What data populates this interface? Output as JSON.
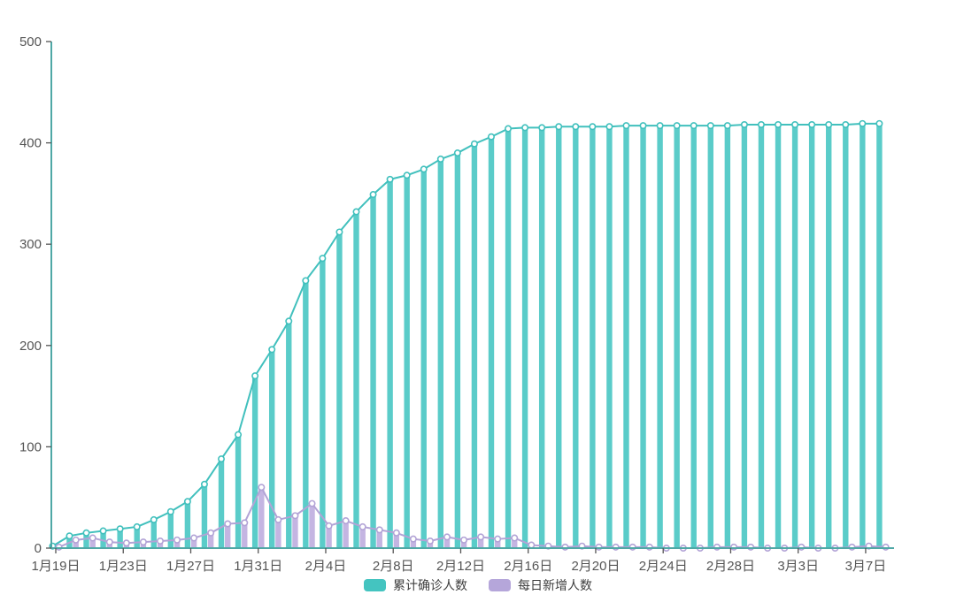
{
  "chart_data": {
    "type": "bar",
    "title": "",
    "xlabel": "",
    "ylabel": "",
    "ylim": [
      0,
      500
    ],
    "y_ticks": [
      0,
      100,
      200,
      300,
      400,
      500
    ],
    "grid": false,
    "legend_position": "bottom-center",
    "x_label_interval": 4,
    "x_tick_labels_shown": [
      "1月19日",
      "1月23日",
      "1月27日",
      "1月31日",
      "2月4日",
      "2月8日",
      "2月12日",
      "2月16日",
      "2月20日",
      "2月24日",
      "2月28日",
      "3月3日",
      "3月7日"
    ],
    "categories": [
      "1月19日",
      "1月20日",
      "1月21日",
      "1月22日",
      "1月23日",
      "1月24日",
      "1月25日",
      "1月26日",
      "1月27日",
      "1月28日",
      "1月29日",
      "1月30日",
      "1月31日",
      "2月1日",
      "2月2日",
      "2月3日",
      "2月4日",
      "2月5日",
      "2月6日",
      "2月7日",
      "2月8日",
      "2月9日",
      "2月10日",
      "2月11日",
      "2月12日",
      "2月13日",
      "2月14日",
      "2月15日",
      "2月16日",
      "2月17日",
      "2月18日",
      "2月19日",
      "2月20日",
      "2月21日",
      "2月22日",
      "2月23日",
      "2月24日",
      "2月25日",
      "2月26日",
      "2月27日",
      "2月28日",
      "2月29日",
      "3月1日",
      "3月2日",
      "3月3日",
      "3月4日",
      "3月5日",
      "3月6日",
      "3月7日",
      "3月8日"
    ],
    "series": [
      {
        "name": "累计确诊人数",
        "type": "bar+line+marker",
        "color": "#41c0bd",
        "bar_color": "#5accc9",
        "values": [
          2,
          12,
          15,
          17,
          19,
          21,
          28,
          36,
          46,
          63,
          88,
          112,
          170,
          196,
          224,
          264,
          286,
          312,
          332,
          349,
          364,
          368,
          374,
          384,
          390,
          399,
          406,
          414,
          415,
          415,
          416,
          416,
          416,
          416,
          417,
          417,
          417,
          417,
          417,
          417,
          417,
          418,
          418,
          418,
          418,
          418,
          418,
          418,
          419,
          419
        ]
      },
      {
        "name": "每日新增人数",
        "type": "bar+line+marker",
        "color": "#b2a3d6",
        "bar_color": "#c4b5e2",
        "values": [
          1,
          8,
          10,
          6,
          5,
          6,
          7,
          8,
          10,
          15,
          24,
          25,
          60,
          28,
          32,
          44,
          22,
          27,
          21,
          18,
          15,
          9,
          7,
          11,
          8,
          11,
          9,
          10,
          3,
          2,
          1,
          2,
          1,
          1,
          1,
          1,
          0,
          0,
          0,
          1,
          1,
          1,
          0,
          0,
          1,
          0,
          0,
          1,
          2,
          1
        ]
      }
    ],
    "axis_colors": {
      "axis_line": "#4fa8a6",
      "tick": "#555555",
      "label_text": "#555555"
    }
  },
  "legend": {
    "items": [
      {
        "label": "累计确诊人数",
        "color": "#44c4c0"
      },
      {
        "label": "每日新增人数",
        "color": "#b5a6da"
      }
    ]
  }
}
